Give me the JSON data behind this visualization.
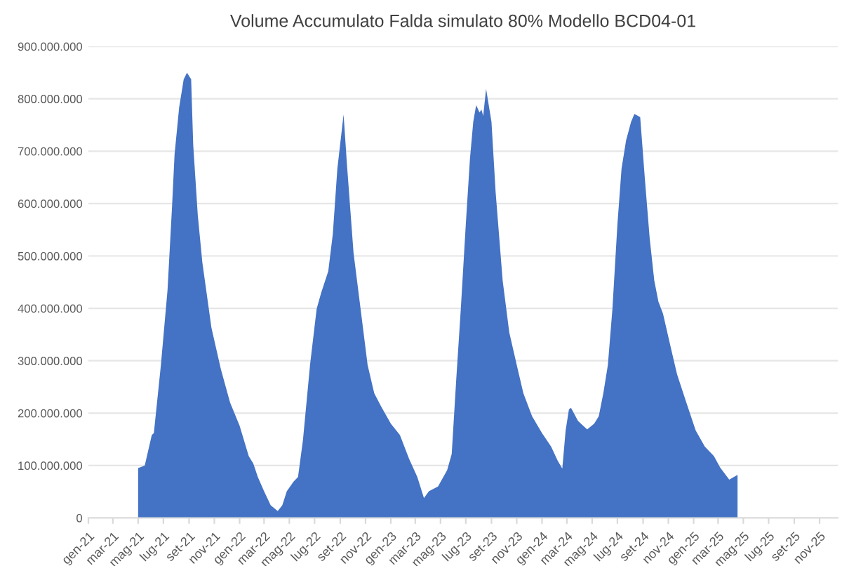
{
  "chart_data": {
    "type": "area",
    "title": "Volume Accumulato Falda simulato 80% Modello BCD04-01",
    "x": [
      "2021-05-01",
      "2021-05-17",
      "2021-06-03",
      "2021-06-08",
      "2021-06-25",
      "2021-07-11",
      "2021-07-22",
      "2021-07-28",
      "2021-08-08",
      "2021-08-19",
      "2021-08-27",
      "2021-09-06",
      "2021-09-11",
      "2021-09-22",
      "2021-10-03",
      "2021-10-25",
      "2021-11-17",
      "2021-12-09",
      "2022-01-01",
      "2022-01-23",
      "2022-02-03",
      "2022-02-14",
      "2022-03-01",
      "2022-03-17",
      "2022-04-03",
      "2022-04-14",
      "2022-04-25",
      "2022-05-11",
      "2022-05-22",
      "2022-06-03",
      "2022-06-20",
      "2022-07-06",
      "2022-07-17",
      "2022-08-03",
      "2022-08-14",
      "2022-08-25",
      "2022-09-09",
      "2022-09-17",
      "2022-10-03",
      "2022-10-20",
      "2022-11-06",
      "2022-11-22",
      "2022-12-09",
      "2023-01-01",
      "2023-01-23",
      "2023-02-14",
      "2023-03-06",
      "2023-03-22",
      "2023-04-03",
      "2023-04-25",
      "2023-05-17",
      "2023-05-28",
      "2023-06-08",
      "2023-06-19",
      "2023-07-01",
      "2023-07-11",
      "2023-07-19",
      "2023-07-26",
      "2023-08-03",
      "2023-08-08",
      "2023-08-12",
      "2023-08-19",
      "2023-09-01",
      "2023-09-11",
      "2023-09-28",
      "2023-10-14",
      "2023-11-01",
      "2023-11-17",
      "2023-12-08",
      "2024-01-01",
      "2024-01-23",
      "2024-02-08",
      "2024-02-19",
      "2024-02-27",
      "2024-03-06",
      "2024-03-11",
      "2024-03-28",
      "2024-04-19",
      "2024-05-06",
      "2024-05-17",
      "2024-05-28",
      "2024-06-08",
      "2024-06-19",
      "2024-07-01",
      "2024-07-11",
      "2024-07-22",
      "2024-08-03",
      "2024-08-11",
      "2024-08-25",
      "2024-09-06",
      "2024-09-17",
      "2024-09-28",
      "2024-10-08",
      "2024-10-19",
      "2024-11-06",
      "2024-11-22",
      "2024-12-14",
      "2025-01-06",
      "2025-01-28",
      "2025-02-19",
      "2025-03-06",
      "2025-03-28",
      "2025-04-08",
      "2025-04-17"
    ],
    "values": [
      95000000,
      100000000,
      158000000,
      162000000,
      292000000,
      435000000,
      596000000,
      694000000,
      783000000,
      837000000,
      850000000,
      837000000,
      712000000,
      578000000,
      488000000,
      363000000,
      283000000,
      220000000,
      176000000,
      118000000,
      104000000,
      78000000,
      51000000,
      24000000,
      13000000,
      24000000,
      51000000,
      69000000,
      78000000,
      149000000,
      292000000,
      399000000,
      430000000,
      471000000,
      542000000,
      667000000,
      770000000,
      676000000,
      506000000,
      399000000,
      292000000,
      238000000,
      212000000,
      180000000,
      158000000,
      113000000,
      78000000,
      38000000,
      51000000,
      60000000,
      91000000,
      122000000,
      265000000,
      399000000,
      560000000,
      685000000,
      756000000,
      788000000,
      774000000,
      779000000,
      767000000,
      819000000,
      756000000,
      622000000,
      453000000,
      354000000,
      292000000,
      238000000,
      194000000,
      162000000,
      136000000,
      109000000,
      94000000,
      167000000,
      207000000,
      210000000,
      185000000,
      169000000,
      180000000,
      194000000,
      238000000,
      292000000,
      399000000,
      560000000,
      667000000,
      721000000,
      756000000,
      771000000,
      765000000,
      640000000,
      533000000,
      453000000,
      413000000,
      390000000,
      328000000,
      274000000,
      221000000,
      167000000,
      136000000,
      118000000,
      96000000,
      73000000,
      78000000,
      82000000
    ],
    "color": "#4472c4",
    "xlim": [
      "2021-01-01",
      "2025-12-15"
    ],
    "xticks": [
      {
        "value": "2021-01-01",
        "label": "gen-21"
      },
      {
        "value": "2021-03-01",
        "label": "mar-21"
      },
      {
        "value": "2021-05-01",
        "label": "mag-21"
      },
      {
        "value": "2021-07-01",
        "label": "lug-21"
      },
      {
        "value": "2021-09-01",
        "label": "set-21"
      },
      {
        "value": "2021-11-01",
        "label": "nov-21"
      },
      {
        "value": "2022-01-01",
        "label": "gen-22"
      },
      {
        "value": "2022-03-01",
        "label": "mar-22"
      },
      {
        "value": "2022-05-01",
        "label": "mag-22"
      },
      {
        "value": "2022-07-01",
        "label": "lug-22"
      },
      {
        "value": "2022-09-01",
        "label": "set-22"
      },
      {
        "value": "2022-11-01",
        "label": "nov-22"
      },
      {
        "value": "2023-01-01",
        "label": "gen-23"
      },
      {
        "value": "2023-03-01",
        "label": "mar-23"
      },
      {
        "value": "2023-05-01",
        "label": "mag-23"
      },
      {
        "value": "2023-07-01",
        "label": "lug-23"
      },
      {
        "value": "2023-09-01",
        "label": "set-23"
      },
      {
        "value": "2023-11-01",
        "label": "nov-23"
      },
      {
        "value": "2024-01-01",
        "label": "gen-24"
      },
      {
        "value": "2024-03-01",
        "label": "mar-24"
      },
      {
        "value": "2024-05-01",
        "label": "mag-24"
      },
      {
        "value": "2024-07-01",
        "label": "lug-24"
      },
      {
        "value": "2024-09-01",
        "label": "set-24"
      },
      {
        "value": "2024-11-01",
        "label": "nov-24"
      },
      {
        "value": "2025-01-01",
        "label": "gen-25"
      },
      {
        "value": "2025-03-01",
        "label": "mar-25"
      },
      {
        "value": "2025-05-01",
        "label": "mag-25"
      },
      {
        "value": "2025-07-01",
        "label": "lug-25"
      },
      {
        "value": "2025-09-01",
        "label": "set-25"
      },
      {
        "value": "2025-11-01",
        "label": "nov-25"
      }
    ],
    "ylim": [
      0,
      900000000
    ],
    "yticks": [
      0,
      {
        "value": 100000000,
        "label": "100.000.000"
      },
      {
        "value": 200000000,
        "label": "200.000.000"
      },
      {
        "value": 300000000,
        "label": "300.000.000"
      },
      {
        "value": 400000000,
        "label": "400.000.000"
      },
      {
        "value": 500000000,
        "label": "500.000.000"
      },
      {
        "value": 600000000,
        "label": "600.000.000"
      },
      {
        "value": 700000000,
        "label": "700.000.000"
      },
      {
        "value": 800000000,
        "label": "800.000.000"
      },
      {
        "value": 900000000,
        "label": "900.000.000"
      }
    ],
    "grid": "y",
    "legend": false
  }
}
